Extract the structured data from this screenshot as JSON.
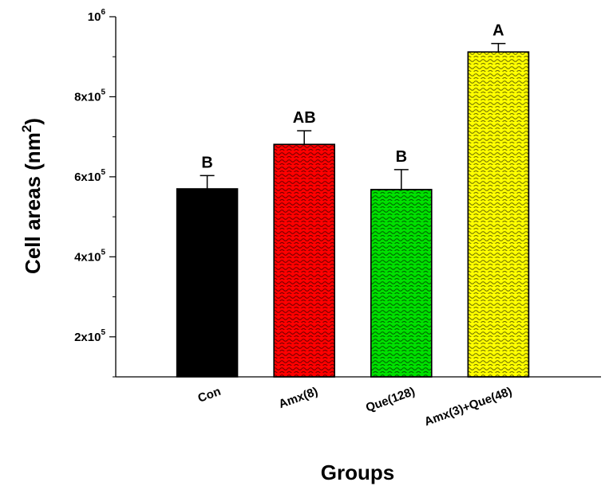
{
  "chart_data": {
    "type": "bar",
    "xlabel": "Groups",
    "ylabel": {
      "text": "Cell areas (nm",
      "superscript": "2",
      "suffix": ")"
    },
    "ylim": [
      100000,
      1000000
    ],
    "y_ticks": [
      {
        "value": 200000,
        "mantissa": "2x10",
        "exponent": "5"
      },
      {
        "value": 400000,
        "mantissa": "4x10",
        "exponent": "5"
      },
      {
        "value": 600000,
        "mantissa": "6x10",
        "exponent": "5"
      },
      {
        "value": 800000,
        "mantissa": "8x10",
        "exponent": "5"
      },
      {
        "value": 1000000,
        "mantissa": "10",
        "exponent": "6"
      }
    ],
    "categories": [
      "Con",
      "Amx(8)",
      "Que(128)",
      "Amx(3)+Que(48)"
    ],
    "values": [
      570000,
      681000,
      568000,
      912000
    ],
    "errors": [
      33000,
      34000,
      50000,
      21000
    ],
    "significance": [
      "B",
      "AB",
      "B",
      "A"
    ],
    "colors": [
      "#000000",
      "#ff0000",
      "#00e000",
      "#ffff00"
    ],
    "patterned": [
      false,
      true,
      true,
      true
    ],
    "grid": false,
    "legend": "none"
  }
}
